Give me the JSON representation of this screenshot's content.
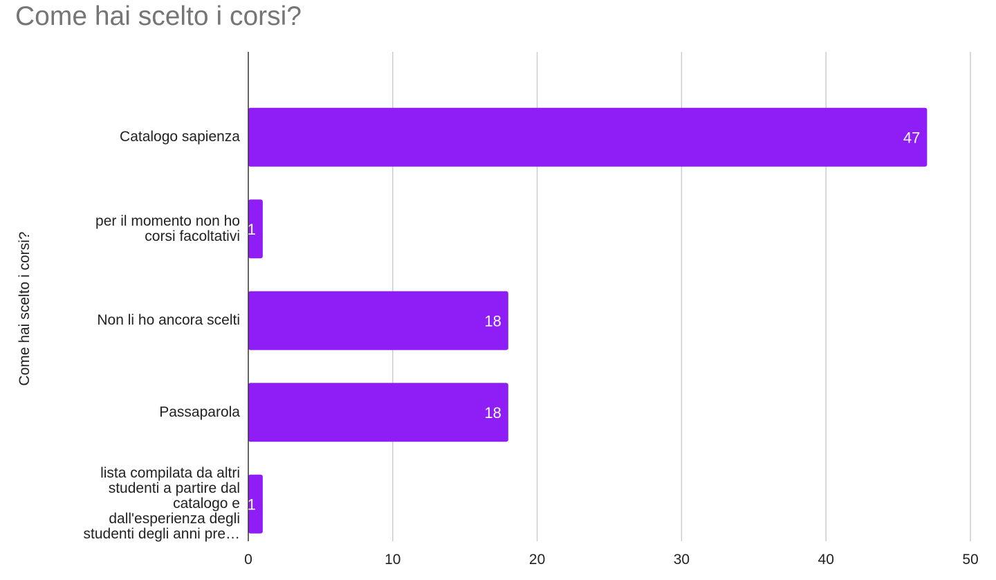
{
  "chart_data": {
    "type": "bar",
    "orientation": "horizontal",
    "title": "Come hai scelto i corsi?",
    "ylabel": "Come hai scelto i corsi?",
    "xlabel": "",
    "categories": [
      [
        "Catalogo sapienza"
      ],
      [
        "per il momento non ho",
        "corsi facoltativi"
      ],
      [
        "Non li ho ancora scelti"
      ],
      [
        "Passaparola"
      ],
      [
        "lista compilata da altri",
        "studenti a partire dal",
        "catalogo e",
        "dall'esperienza degli",
        "studenti degli anni pre…"
      ]
    ],
    "values": [
      47,
      1,
      18,
      18,
      1
    ],
    "data_labels": [
      "47",
      "1",
      "18",
      "18",
      "1"
    ],
    "xlim": [
      0,
      50
    ],
    "xticks": [
      "0",
      "10",
      "20",
      "30",
      "40",
      "50"
    ],
    "grid": true,
    "bar_color": "#8e1ef5",
    "grid_color": "#cccccc"
  }
}
